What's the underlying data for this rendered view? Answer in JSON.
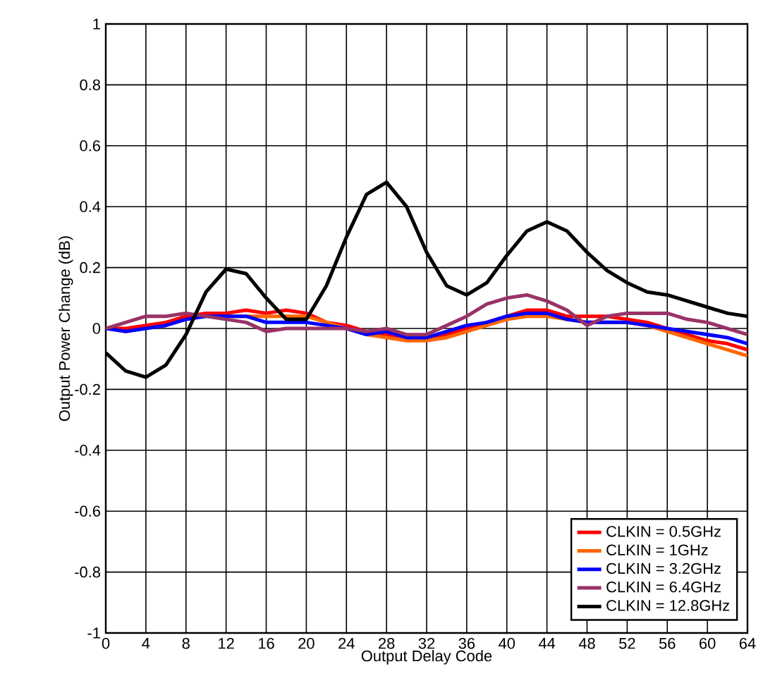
{
  "chart_data": {
    "type": "line",
    "xlabel": "Output Delay Code",
    "ylabel": "Output Power Change (dB)",
    "x": [
      0,
      2,
      4,
      6,
      8,
      10,
      12,
      14,
      16,
      18,
      20,
      22,
      24,
      26,
      28,
      30,
      32,
      34,
      36,
      38,
      40,
      42,
      44,
      46,
      48,
      50,
      52,
      54,
      56,
      58,
      60,
      62,
      64
    ],
    "xlim": [
      0,
      64
    ],
    "xticks": [
      0,
      4,
      8,
      12,
      16,
      20,
      24,
      28,
      32,
      36,
      40,
      44,
      48,
      52,
      56,
      60,
      64
    ],
    "ylim": [
      -1,
      1
    ],
    "yticks": [
      -1,
      -0.8,
      -0.6,
      -0.4,
      -0.2,
      0,
      0.2,
      0.4,
      0.6,
      0.8,
      1
    ],
    "grid": true,
    "legend": "bottom right",
    "marker": "none",
    "line_style": "solid",
    "series": [
      {
        "name": "CLKIN = 0.5GHz",
        "color": "#ff0000",
        "values": [
          0,
          0,
          0.01,
          0.02,
          0.04,
          0.05,
          0.05,
          0.06,
          0.05,
          0.06,
          0.05,
          0.02,
          0.01,
          -0.01,
          -0.02,
          -0.03,
          -0.03,
          -0.02,
          0,
          0.02,
          0.04,
          0.06,
          0.06,
          0.04,
          0.04,
          0.04,
          0.03,
          0.02,
          0,
          -0.02,
          -0.04,
          -0.05,
          -0.07
        ]
      },
      {
        "name": "CLKIN = 1GHz",
        "color": "#ff6600",
        "values": [
          null,
          null,
          null,
          null,
          null,
          null,
          0.04,
          0.04,
          0.04,
          0.04,
          0.04,
          0.02,
          0,
          -0.02,
          -0.03,
          -0.04,
          -0.04,
          -0.03,
          -0.01,
          0.01,
          0.03,
          0.04,
          0.04,
          0.03,
          0.02,
          0.02,
          0.02,
          0.01,
          -0.01,
          -0.03,
          -0.05,
          -0.07,
          -0.09
        ]
      },
      {
        "name": "CLKIN = 3.2GHz",
        "color": "#0000ff",
        "values": [
          0,
          -0.01,
          0,
          0.01,
          0.03,
          0.04,
          0.04,
          0.04,
          0.02,
          0.02,
          0.02,
          0.01,
          0,
          -0.02,
          -0.01,
          -0.03,
          -0.03,
          -0.01,
          0.01,
          0.02,
          0.04,
          0.05,
          0.05,
          0.03,
          0.02,
          0.02,
          0.02,
          0.01,
          0,
          -0.01,
          -0.02,
          -0.03,
          -0.05
        ]
      },
      {
        "name": "CLKIN = 6.4GHz",
        "color": "#993366",
        "values": [
          0,
          0.02,
          0.04,
          0.04,
          0.05,
          0.04,
          0.03,
          0.02,
          -0.01,
          0,
          0,
          0,
          0,
          -0.01,
          0,
          -0.02,
          -0.02,
          0.01,
          0.04,
          0.08,
          0.1,
          0.11,
          0.09,
          0.06,
          0.01,
          0.04,
          0.05,
          0.05,
          0.05,
          0.03,
          0.02,
          0,
          -0.02
        ]
      },
      {
        "name": "CLKIN = 12.8GHz",
        "color": "#000000",
        "values": [
          -0.08,
          -0.14,
          -0.16,
          -0.12,
          -0.02,
          0.12,
          0.195,
          0.18,
          0.1,
          0.03,
          0.03,
          0.14,
          0.3,
          0.44,
          0.48,
          0.4,
          0.25,
          0.14,
          0.11,
          0.15,
          0.24,
          0.32,
          0.35,
          0.32,
          0.25,
          0.19,
          0.15,
          0.12,
          0.11,
          0.09,
          0.07,
          0.05,
          0.04
        ]
      }
    ]
  }
}
